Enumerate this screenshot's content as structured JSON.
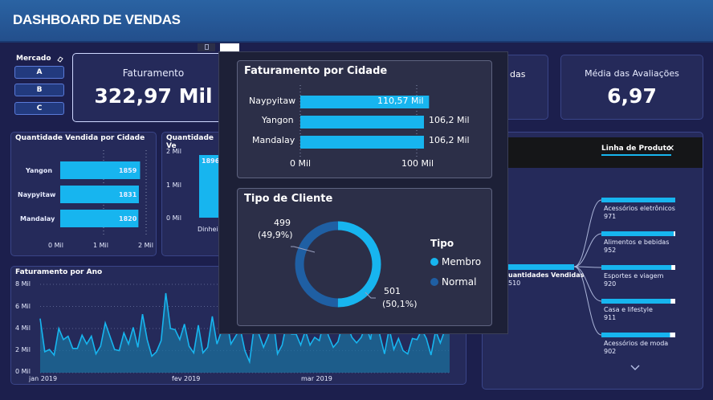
{
  "header": {
    "title": "DASHBOARD DE VENDAS"
  },
  "slicer": {
    "label": "Mercado",
    "options": [
      "A",
      "B",
      "C"
    ]
  },
  "kpis": {
    "faturamento": {
      "label": "Faturamento",
      "value": "322,97 Mil"
    },
    "partial_label": "das",
    "avaliacoes": {
      "label": "Média das Avaliações",
      "value": "6,97"
    }
  },
  "qtd_cidade": {
    "title": "Quantidade Vendida por Cidade",
    "cities": [
      "Yangon",
      "Naypyitaw",
      "Mandalay"
    ],
    "values_text": [
      "1859",
      "1831",
      "1820"
    ],
    "x_ticks": [
      "0 Mil",
      "1 Mil",
      "2 Mil"
    ]
  },
  "qtd_pagamento": {
    "title": "Quantidade Ve",
    "y_ticks": [
      "2 Mil",
      "1 Mil",
      "0 Mil"
    ],
    "bar_value": "1896",
    "category": "Dinheiro"
  },
  "faturamento_ano": {
    "title": "Faturamento por Ano",
    "y_ticks": [
      "8 Mil",
      "6 Mil",
      "4 Mil",
      "2 Mil",
      "0 Mil"
    ],
    "x_ticks": [
      "jan 2019",
      "fev 2019",
      "mar 2019"
    ]
  },
  "linha_produto": {
    "tab_label": "Linha de Produto",
    "root_label": "uantidades Vendidas",
    "root_value": "510",
    "items": [
      {
        "label": "Acessórios eletrônicos",
        "value": "971"
      },
      {
        "label": "Alimentos e bebidas",
        "value": "952"
      },
      {
        "label": "Esportes e viagem",
        "value": "920"
      },
      {
        "label": "Casa e lifestyle",
        "value": "911"
      },
      {
        "label": "Acessórios de moda",
        "value": "902"
      }
    ]
  },
  "popup": {
    "faturamento_cidade": {
      "title": "Faturamento por Cidade",
      "cities": [
        "Naypyitaw",
        "Yangon",
        "Mandalay"
      ],
      "values_text": [
        "110,57 Mil",
        "106,2 Mil",
        "106,2 Mil"
      ],
      "x_ticks": [
        "0 Mil",
        "100 Mil"
      ]
    },
    "tipo_cliente": {
      "title": "Tipo de Cliente",
      "legend_title": "Tipo",
      "legend": [
        "Membro",
        "Normal"
      ],
      "normal_value": "499",
      "normal_pct": "(49,9%)",
      "membro_value": "501",
      "membro_pct": "(50,1%)"
    }
  },
  "colors": {
    "bar": "#17b5ef",
    "normal": "#1f5fa3",
    "background": "#1c1f4d",
    "header": "#2a63a3"
  },
  "chart_data": [
    {
      "type": "bar",
      "title": "Quantidade Vendida por Cidade",
      "categories": [
        "Yangon",
        "Naypyitaw",
        "Mandalay"
      ],
      "values": [
        1859,
        1831,
        1820
      ],
      "xlim": [
        0,
        2000
      ]
    },
    {
      "type": "bar",
      "title": "Faturamento por Cidade",
      "categories": [
        "Naypyitaw",
        "Yangon",
        "Mandalay"
      ],
      "values": [
        110570,
        106200,
        106200
      ],
      "xlim": [
        0,
        120000
      ]
    },
    {
      "type": "pie",
      "title": "Tipo de Cliente",
      "categories": [
        "Membro",
        "Normal"
      ],
      "values": [
        501,
        499
      ]
    },
    {
      "type": "area",
      "title": "Faturamento por Ano",
      "ylim": [
        0,
        8000
      ],
      "values": [
        4900,
        1900,
        2100,
        1600,
        4000,
        3000,
        3300,
        2200,
        2200,
        3400,
        2600,
        3300,
        1700,
        2400,
        4500,
        3300,
        2100,
        2000,
        3600,
        2600,
        4100,
        2300,
        5300,
        3000,
        1500,
        1900,
        2900,
        7200,
        4000,
        3900,
        3000,
        4400,
        2400,
        1800,
        4300,
        1800,
        2300,
        5100,
        2600,
        3800,
        5000,
        2600,
        3300,
        4000,
        2000,
        1000,
        4200,
        3500,
        2300,
        3300,
        5100,
        1700,
        2500,
        4600,
        3500,
        3500,
        2500,
        3800,
        2500,
        3200,
        2900,
        4600,
        3300,
        2300,
        2800,
        4400,
        4300,
        3200,
        2700,
        3200,
        4300,
        3000,
        5800,
        3400,
        1700,
        4000,
        2100,
        3100,
        2000,
        1700,
        3100,
        3000,
        3900,
        3100,
        1600,
        3800,
        2700,
        3900,
        3600
      ]
    }
  ]
}
